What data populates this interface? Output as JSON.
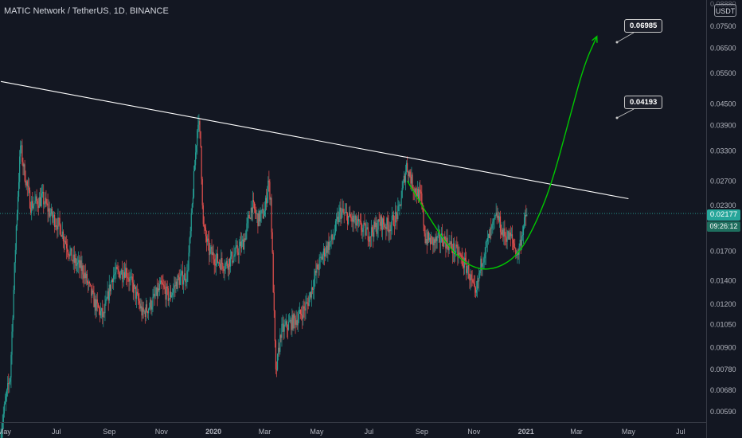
{
  "header": {
    "symbol": "MATIC Network / TetherUS",
    "interval": "1D",
    "exchange": "BINANCE",
    "currency_badge": "USDT"
  },
  "price_scale": {
    "ticks": [
      "0.07500",
      "0.06500",
      "0.05500",
      "0.04500",
      "0.03900",
      "0.03300",
      "0.02700",
      "0.02300",
      "0.01700",
      "0.01400",
      "0.01200",
      "0.01050",
      "0.00900",
      "0.00780",
      "0.00680",
      "0.00590"
    ],
    "top_partial": "0.08880"
  },
  "time_scale": {
    "ticks": [
      "May",
      "Jul",
      "Sep",
      "Nov",
      "2020",
      "Mar",
      "May",
      "Jul",
      "Sep",
      "Nov",
      "2021",
      "Mar",
      "May",
      "Jul"
    ],
    "bold": [
      "2020",
      "2021"
    ]
  },
  "current_price": {
    "value": "0.02177",
    "countdown": "09:26:12",
    "color": "#26a69a"
  },
  "annotations": {
    "target_1": "0.06985",
    "target_2": "0.04193"
  },
  "colors": {
    "background": "#131722",
    "up": "#26a69a",
    "down": "#ef5350",
    "trendline": "#ffffff",
    "projection": "#00c800"
  },
  "chart_data": {
    "type": "candlestick",
    "scale": "log",
    "x_range": [
      "2019-04-26",
      "2021-07-31"
    ],
    "y_range": [
      0.0055,
      0.089
    ],
    "close_path": [
      [
        "2019-04-27",
        0.0052
      ],
      [
        "2019-05-01",
        0.006
      ],
      [
        "2019-05-08",
        0.0075
      ],
      [
        "2019-05-15",
        0.02
      ],
      [
        "2019-05-20",
        0.034
      ],
      [
        "2019-05-24",
        0.029
      ],
      [
        "2019-06-01",
        0.023
      ],
      [
        "2019-06-15",
        0.024
      ],
      [
        "2019-06-25",
        0.0215
      ],
      [
        "2019-07-05",
        0.02
      ],
      [
        "2019-07-20",
        0.016
      ],
      [
        "2019-08-01",
        0.015
      ],
      [
        "2019-08-15",
        0.012
      ],
      [
        "2019-08-25",
        0.011
      ],
      [
        "2019-09-05",
        0.0145
      ],
      [
        "2019-09-20",
        0.015
      ],
      [
        "2019-10-01",
        0.013
      ],
      [
        "2019-10-10",
        0.0112
      ],
      [
        "2019-10-20",
        0.012
      ],
      [
        "2019-11-01",
        0.0135
      ],
      [
        "2019-11-10",
        0.0125
      ],
      [
        "2019-11-20",
        0.014
      ],
      [
        "2019-12-01",
        0.0145
      ],
      [
        "2019-12-05",
        0.019
      ],
      [
        "2019-12-10",
        0.03
      ],
      [
        "2019-12-14",
        0.041
      ],
      [
        "2019-12-17",
        0.034
      ],
      [
        "2019-12-20",
        0.02
      ],
      [
        "2019-12-27",
        0.017
      ],
      [
        "2020-01-05",
        0.016
      ],
      [
        "2020-01-15",
        0.0155
      ],
      [
        "2020-01-25",
        0.0165
      ],
      [
        "2020-02-05",
        0.018
      ],
      [
        "2020-02-15",
        0.023
      ],
      [
        "2020-02-22",
        0.021
      ],
      [
        "2020-03-01",
        0.022
      ],
      [
        "2020-03-05",
        0.027
      ],
      [
        "2020-03-08",
        0.024
      ],
      [
        "2020-03-12",
        0.011
      ],
      [
        "2020-03-14",
        0.0075
      ],
      [
        "2020-03-20",
        0.01
      ],
      [
        "2020-03-30",
        0.0105
      ],
      [
        "2020-04-10",
        0.011
      ],
      [
        "2020-04-20",
        0.012
      ],
      [
        "2020-05-01",
        0.015
      ],
      [
        "2020-05-10",
        0.017
      ],
      [
        "2020-05-20",
        0.0185
      ],
      [
        "2020-05-28",
        0.022
      ],
      [
        "2020-06-10",
        0.021
      ],
      [
        "2020-06-20",
        0.02
      ],
      [
        "2020-07-01",
        0.019
      ],
      [
        "2020-07-15",
        0.0205
      ],
      [
        "2020-07-25",
        0.02
      ],
      [
        "2020-08-05",
        0.022
      ],
      [
        "2020-08-12",
        0.028
      ],
      [
        "2020-08-14",
        0.03
      ],
      [
        "2020-08-22",
        0.026
      ],
      [
        "2020-08-31",
        0.024
      ],
      [
        "2020-09-05",
        0.0185
      ],
      [
        "2020-09-15",
        0.018
      ],
      [
        "2020-09-25",
        0.0185
      ],
      [
        "2020-10-05",
        0.0175
      ],
      [
        "2020-10-15",
        0.0165
      ],
      [
        "2020-10-25",
        0.015
      ],
      [
        "2020-11-03",
        0.0125
      ],
      [
        "2020-11-10",
        0.016
      ],
      [
        "2020-11-20",
        0.019
      ],
      [
        "2020-11-28",
        0.0215
      ],
      [
        "2020-12-05",
        0.019
      ],
      [
        "2020-12-15",
        0.0185
      ],
      [
        "2020-12-22",
        0.0165
      ],
      [
        "2020-12-28",
        0.0195
      ],
      [
        "2021-01-02",
        0.02177
      ]
    ],
    "trendline": [
      [
        "2019-04-27",
        0.052
      ],
      [
        "2021-05-01",
        0.024
      ]
    ],
    "projection_curve": [
      [
        "2020-08-15",
        0.027
      ],
      [
        "2020-09-10",
        0.021
      ],
      [
        "2020-10-10",
        0.0165
      ],
      [
        "2020-11-05",
        0.015
      ],
      [
        "2020-12-01",
        0.0152
      ],
      [
        "2020-12-25",
        0.0168
      ],
      [
        "2021-01-15",
        0.021
      ],
      [
        "2021-02-01",
        0.027
      ],
      [
        "2021-02-20",
        0.04
      ],
      [
        "2021-03-10",
        0.058
      ],
      [
        "2021-03-25",
        0.07
      ]
    ],
    "targets": [
      0.06985,
      0.04193
    ],
    "last_price": 0.02177
  }
}
